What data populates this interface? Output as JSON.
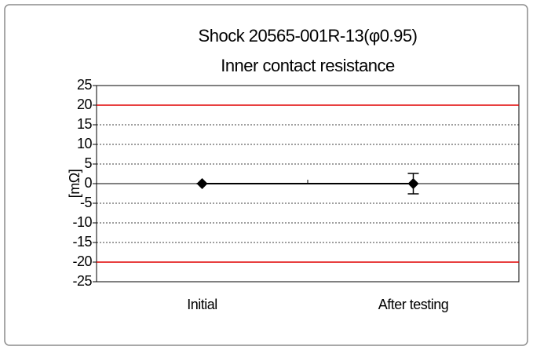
{
  "chart_data": {
    "type": "line",
    "title": "Shock 20565-001R-13(φ0.95)",
    "subtitle": "Inner contact resistance",
    "y_label": "[mΩ]",
    "categories": [
      "Initial",
      "After testing"
    ],
    "series": [
      {
        "name": "Inner contact resistance",
        "color": "#000000",
        "values": [
          0,
          0
        ],
        "errors": [
          0,
          2.6
        ]
      }
    ],
    "limits": [
      20,
      -20
    ],
    "limit_color": "#e00000",
    "ylim": [
      -25,
      25
    ],
    "yticks": [
      -25,
      -20,
      -15,
      -10,
      -5,
      0,
      5,
      10,
      15,
      20,
      25
    ],
    "grid": true
  }
}
